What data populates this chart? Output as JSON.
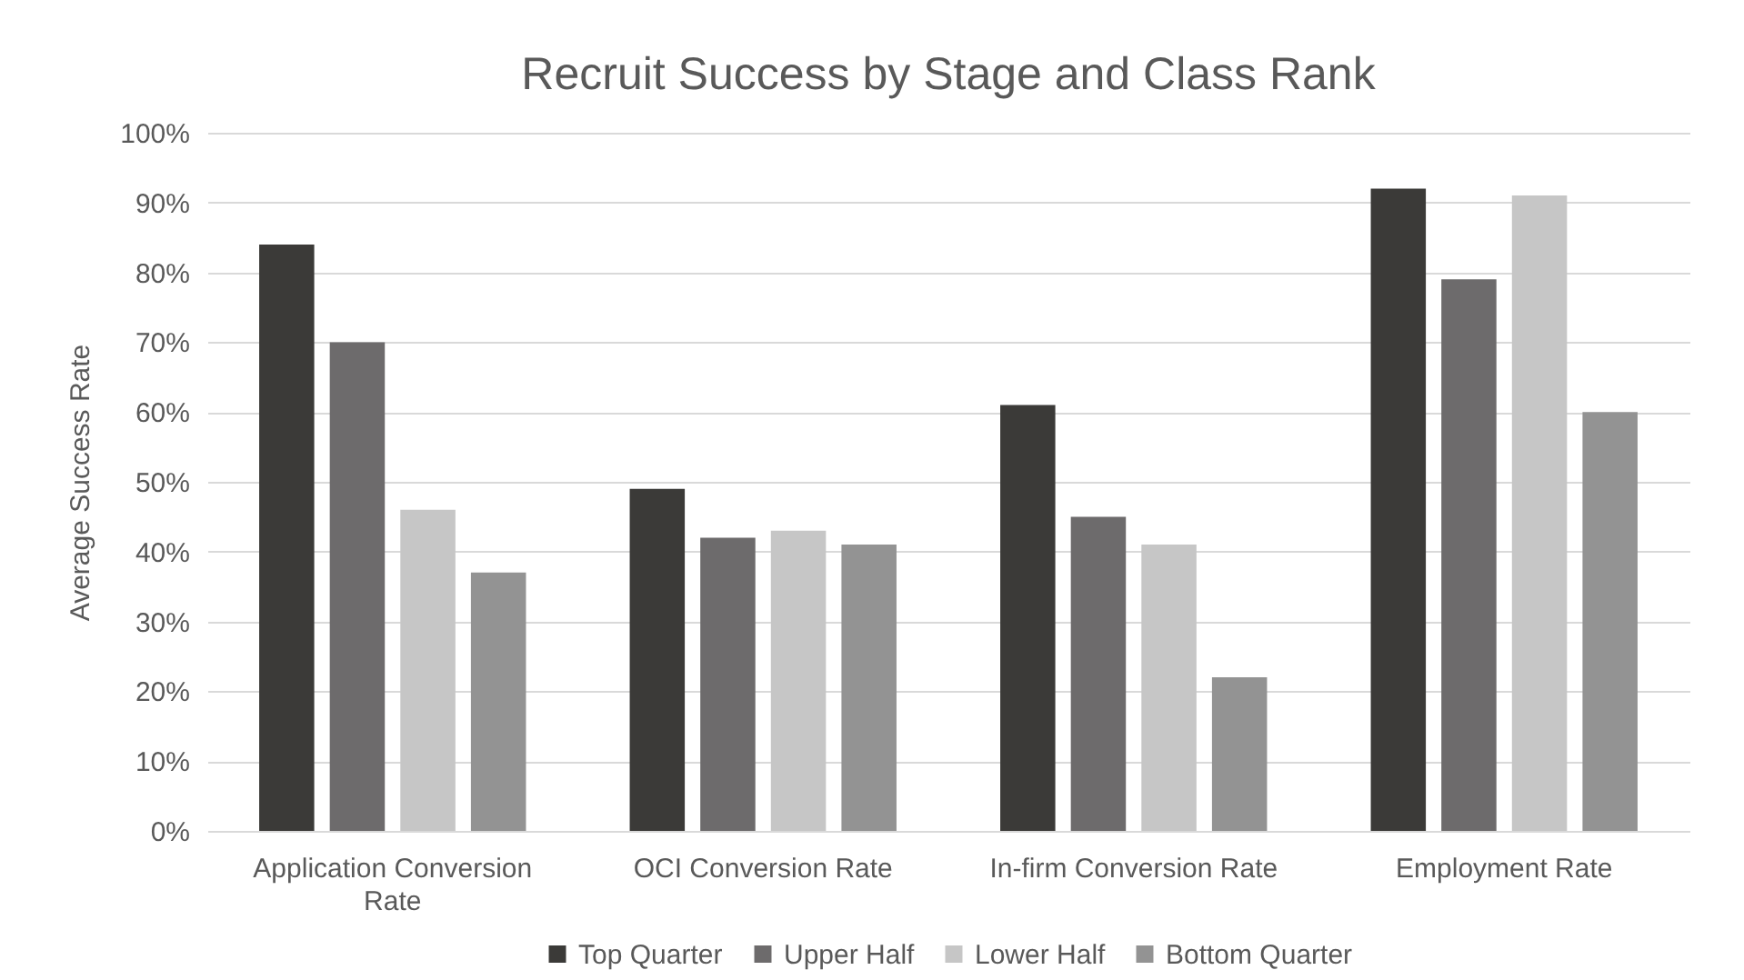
{
  "chart_data": {
    "type": "bar",
    "title": "Recruit Success by Stage and Class Rank",
    "ylabel": "Average Success Rate",
    "categories": [
      "Application Conversion Rate",
      "OCI Conversion Rate",
      "In-firm Conversion Rate",
      "Employment Rate"
    ],
    "series": [
      {
        "name": "Top Quarter",
        "color": "#3b3a38",
        "values": [
          84,
          49,
          61,
          92
        ]
      },
      {
        "name": "Upper Half",
        "color": "#6d6b6c",
        "values": [
          70,
          42,
          45,
          79
        ]
      },
      {
        "name": "Lower Half",
        "color": "#c6c6c6",
        "values": [
          46,
          43,
          41,
          91
        ]
      },
      {
        "name": "Bottom Quarter",
        "color": "#939393",
        "values": [
          37,
          41,
          22,
          60
        ]
      }
    ],
    "ylim": [
      0,
      100
    ],
    "yticks": [
      {
        "value": 0,
        "label": "0%"
      },
      {
        "value": 10,
        "label": "10%"
      },
      {
        "value": 20,
        "label": "20%"
      },
      {
        "value": 30,
        "label": "30%"
      },
      {
        "value": 40,
        "label": "40%"
      },
      {
        "value": 50,
        "label": "50%"
      },
      {
        "value": 60,
        "label": "60%"
      },
      {
        "value": 70,
        "label": "70%"
      },
      {
        "value": 80,
        "label": "80%"
      },
      {
        "value": 90,
        "label": "90%"
      },
      {
        "value": 100,
        "label": "100%"
      }
    ],
    "grid": "y",
    "legend": "bottom"
  }
}
